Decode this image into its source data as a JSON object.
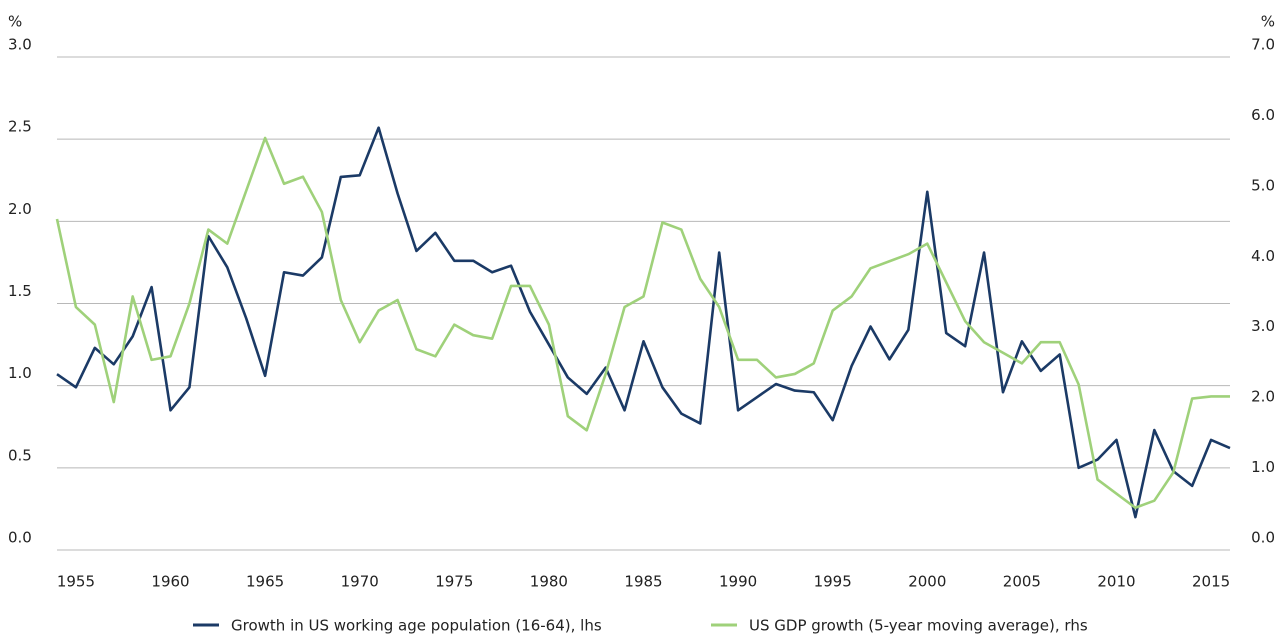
{
  "chart_data": {
    "type": "line",
    "y_label": "%",
    "y2_label": "%",
    "x": [
      1954,
      1955,
      1956,
      1957,
      1958,
      1959,
      1960,
      1961,
      1962,
      1963,
      1964,
      1965,
      1966,
      1967,
      1968,
      1969,
      1970,
      1971,
      1972,
      1973,
      1974,
      1975,
      1976,
      1977,
      1978,
      1979,
      1980,
      1981,
      1982,
      1983,
      1984,
      1985,
      1986,
      1987,
      1988,
      1989,
      1990,
      1991,
      1992,
      1993,
      1994,
      1995,
      1996,
      1997,
      1998,
      1999,
      2000,
      2001,
      2002,
      2003,
      2004,
      2005,
      2006,
      2007,
      2008,
      2009,
      2010,
      2011,
      2012,
      2013,
      2014,
      2015,
      2016
    ],
    "series": [
      {
        "name": "Growth in US working age population (16-64), lhs",
        "color": "#1b3a66",
        "axis": "y",
        "values": [
          1.07,
          0.99,
          1.23,
          1.13,
          1.3,
          1.6,
          0.85,
          0.99,
          1.91,
          1.72,
          1.41,
          1.06,
          1.69,
          1.67,
          1.78,
          2.27,
          2.28,
          2.57,
          2.17,
          1.82,
          1.93,
          1.76,
          1.76,
          1.69,
          1.73,
          1.45,
          1.25,
          1.05,
          0.95,
          1.11,
          0.85,
          1.27,
          0.99,
          0.83,
          0.77,
          1.81,
          0.85,
          0.93,
          1.01,
          0.97,
          0.96,
          0.79,
          1.12,
          1.36,
          1.16,
          1.34,
          2.18,
          1.32,
          1.24,
          1.81,
          0.96,
          1.27,
          1.09,
          1.19,
          0.5,
          0.55,
          0.67,
          0.2,
          0.73,
          0.48,
          0.39,
          0.67,
          0.62
        ]
      },
      {
        "name": "US GDP growth (5-year moving average), rhs",
        "color": "#9fd17a",
        "axis": "y2",
        "values": [
          4.7,
          3.45,
          3.2,
          2.1,
          3.6,
          2.7,
          2.75,
          3.5,
          4.55,
          4.35,
          5.1,
          5.85,
          5.2,
          5.3,
          4.8,
          3.55,
          2.95,
          3.4,
          3.55,
          2.85,
          2.75,
          3.2,
          3.05,
          3.0,
          3.75,
          3.75,
          3.2,
          1.9,
          1.7,
          2.5,
          3.45,
          3.6,
          4.65,
          4.55,
          3.85,
          3.45,
          2.7,
          2.7,
          2.45,
          2.5,
          2.65,
          3.4,
          3.6,
          4.0,
          4.1,
          4.2,
          4.35,
          3.8,
          3.25,
          2.95,
          2.8,
          2.65,
          2.95,
          2.95,
          2.35,
          1.0,
          0.8,
          0.6,
          0.7,
          1.1,
          2.15,
          2.18,
          2.18
        ]
      }
    ],
    "xlim": [
      1954,
      2016
    ],
    "xticks": [
      1955,
      1960,
      1965,
      1970,
      1975,
      1980,
      1985,
      1990,
      1995,
      2000,
      2005,
      2010,
      2015
    ],
    "ylim": [
      0,
      3
    ],
    "yticks": [
      {
        "value": 0,
        "label": "0.0"
      },
      {
        "value": 0.5,
        "label": "0.5"
      },
      {
        "value": 1,
        "label": "1.0"
      },
      {
        "value": 1.5,
        "label": "1.5"
      },
      {
        "value": 2,
        "label": "2.0"
      },
      {
        "value": 2.5,
        "label": "2.5"
      },
      {
        "value": 3,
        "label": "3.0"
      }
    ],
    "y2lim": [
      0,
      7
    ],
    "y2ticks": [
      {
        "value": 0,
        "label": "0.0"
      },
      {
        "value": 1,
        "label": "1.0"
      },
      {
        "value": 2,
        "label": "2.0"
      },
      {
        "value": 3,
        "label": "3.0"
      },
      {
        "value": 4,
        "label": "4.0"
      },
      {
        "value": 5,
        "label": "5.0"
      },
      {
        "value": 6,
        "label": "6.0"
      },
      {
        "value": 7,
        "label": "7.0"
      }
    ],
    "grid": true,
    "legend": "bottom"
  }
}
